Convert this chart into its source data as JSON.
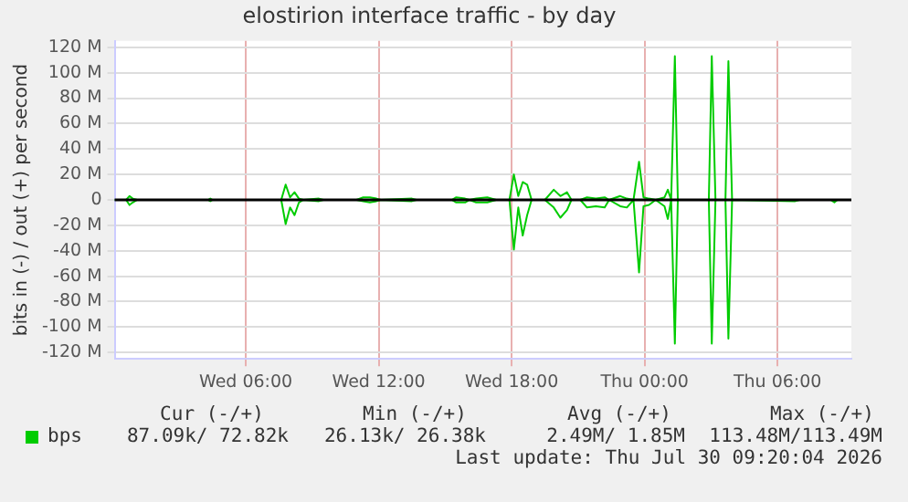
{
  "chart_data": {
    "type": "line",
    "title": "elostirion interface traffic - by day",
    "ylabel": "bits in (-) / out (+) per second",
    "x": [
      "2026-07-29T00:05",
      "2026-07-29T00:36",
      "2026-07-29T00:45",
      "2026-07-29T00:54",
      "2026-07-29T01:06",
      "2026-07-29T04:18",
      "2026-07-29T04:24",
      "2026-07-29T04:30",
      "2026-07-29T07:36",
      "2026-07-29T07:48",
      "2026-07-29T08:00",
      "2026-07-29T08:12",
      "2026-07-29T08:24",
      "2026-07-29T08:36",
      "2026-07-29T09:18",
      "2026-07-29T09:30",
      "2026-07-29T11:00",
      "2026-07-29T11:18",
      "2026-07-29T11:36",
      "2026-07-29T11:54",
      "2026-07-29T12:06",
      "2026-07-29T13:30",
      "2026-07-29T13:42",
      "2026-07-29T15:18",
      "2026-07-29T15:30",
      "2026-07-29T15:54",
      "2026-07-29T16:06",
      "2026-07-29T16:24",
      "2026-07-29T16:54",
      "2026-07-29T17:18",
      "2026-07-29T17:54",
      "2026-07-29T18:06",
      "2026-07-29T18:18",
      "2026-07-29T18:30",
      "2026-07-29T18:42",
      "2026-07-29T18:54",
      "2026-07-29T19:30",
      "2026-07-29T19:54",
      "2026-07-29T20:12",
      "2026-07-29T20:30",
      "2026-07-29T20:42",
      "2026-07-29T21:06",
      "2026-07-29T21:24",
      "2026-07-29T21:48",
      "2026-07-29T22:12",
      "2026-07-29T22:24",
      "2026-07-29T22:54",
      "2026-07-29T23:12",
      "2026-07-29T23:30",
      "2026-07-29T23:45",
      "2026-07-29T23:57",
      "2026-07-30T00:12",
      "2026-07-30T00:30",
      "2026-07-30T00:54",
      "2026-07-30T01:03",
      "2026-07-30T01:12",
      "2026-07-30T01:22",
      "2026-07-30T01:30",
      "2026-07-30T02:54",
      "2026-07-30T03:02",
      "2026-07-30T03:12",
      "2026-07-30T03:39",
      "2026-07-30T03:47",
      "2026-07-30T03:57",
      "2026-07-30T06:48",
      "2026-07-30T07:00",
      "2026-07-30T08:24",
      "2026-07-30T08:34",
      "2026-07-30T08:42",
      "2026-07-30T09:20"
    ],
    "series": [
      {
        "name": "bps",
        "color": "#00cc00",
        "values": [
          0,
          0,
          3,
          1,
          0,
          0,
          1,
          0,
          0,
          12,
          2,
          6,
          1,
          0,
          1,
          0,
          0,
          2,
          2,
          1,
          0,
          1,
          0,
          0,
          2,
          1,
          0,
          1,
          2,
          0,
          0,
          20,
          3,
          14,
          12,
          0,
          0,
          8,
          3,
          6,
          0,
          0,
          2,
          1,
          2,
          0,
          3,
          1,
          0,
          30,
          2,
          1,
          0,
          2,
          8,
          0,
          113,
          0,
          0,
          113,
          0,
          0,
          109,
          0,
          0,
          0,
          0,
          0,
          0,
          0
        ]
      },
      {
        "color": "#00cc00",
        "values": [
          0,
          0,
          -4,
          -2,
          0,
          0,
          -1,
          0,
          0,
          -19,
          -6,
          -12,
          -2,
          0,
          -1,
          0,
          0,
          -1,
          -2,
          -1,
          0,
          -1,
          0,
          0,
          -2,
          -2,
          0,
          -2,
          -2,
          0,
          0,
          -39,
          -6,
          -28,
          -12,
          0,
          0,
          -6,
          -14,
          -8,
          0,
          0,
          -6,
          -5,
          -6,
          0,
          -5,
          -6,
          0,
          -57,
          -5,
          -4,
          0,
          -5,
          -15,
          0,
          -113,
          0,
          0,
          -113,
          0,
          0,
          -109,
          0,
          -1,
          0,
          0,
          -2,
          0,
          0
        ]
      }
    ],
    "xlim": [
      "2026-07-29T00:05",
      "2026-07-30T09:20"
    ],
    "xticks": [
      {
        "value": "2026-07-29T06:00",
        "label": "Wed 06:00"
      },
      {
        "value": "2026-07-29T12:00",
        "label": "Wed 12:00"
      },
      {
        "value": "2026-07-29T18:00",
        "label": "Wed 18:00"
      },
      {
        "value": "2026-07-30T00:00",
        "label": "Thu 00:00"
      },
      {
        "value": "2026-07-30T06:00",
        "label": "Thu 06:00"
      }
    ],
    "ylim": [
      -125,
      125
    ],
    "yticks": [
      {
        "value": -120,
        "label": "-120 M"
      },
      {
        "value": -100,
        "label": "-100 M"
      },
      {
        "value": -80,
        "label": "-80 M"
      },
      {
        "value": -60,
        "label": "-60 M"
      },
      {
        "value": -40,
        "label": "-40 M"
      },
      {
        "value": -20,
        "label": "-20 M"
      },
      0,
      {
        "value": 20,
        "label": "20 M"
      },
      {
        "value": 40,
        "label": "40 M"
      },
      {
        "value": 60,
        "label": "60 M"
      },
      {
        "value": 80,
        "label": "80 M"
      },
      {
        "value": 100,
        "label": "100 M"
      },
      {
        "value": 120,
        "label": "120 M"
      }
    ],
    "ref_lines": [
      {
        "axis": "y",
        "value": 0,
        "color": "#000000"
      }
    ],
    "grid": true,
    "legend": "bottom",
    "annotations": [
      "Cur (-/+)",
      "Min (-/+)",
      "Avg (-/+)",
      "Max (-/+)",
      "87.09k/ 72.82k",
      "26.13k/ 26.38k",
      "2.49M/ 1.85M",
      "113.48M/113.49M",
      "Last update: Thu Jul 30 09:20:04 2026"
    ]
  }
}
